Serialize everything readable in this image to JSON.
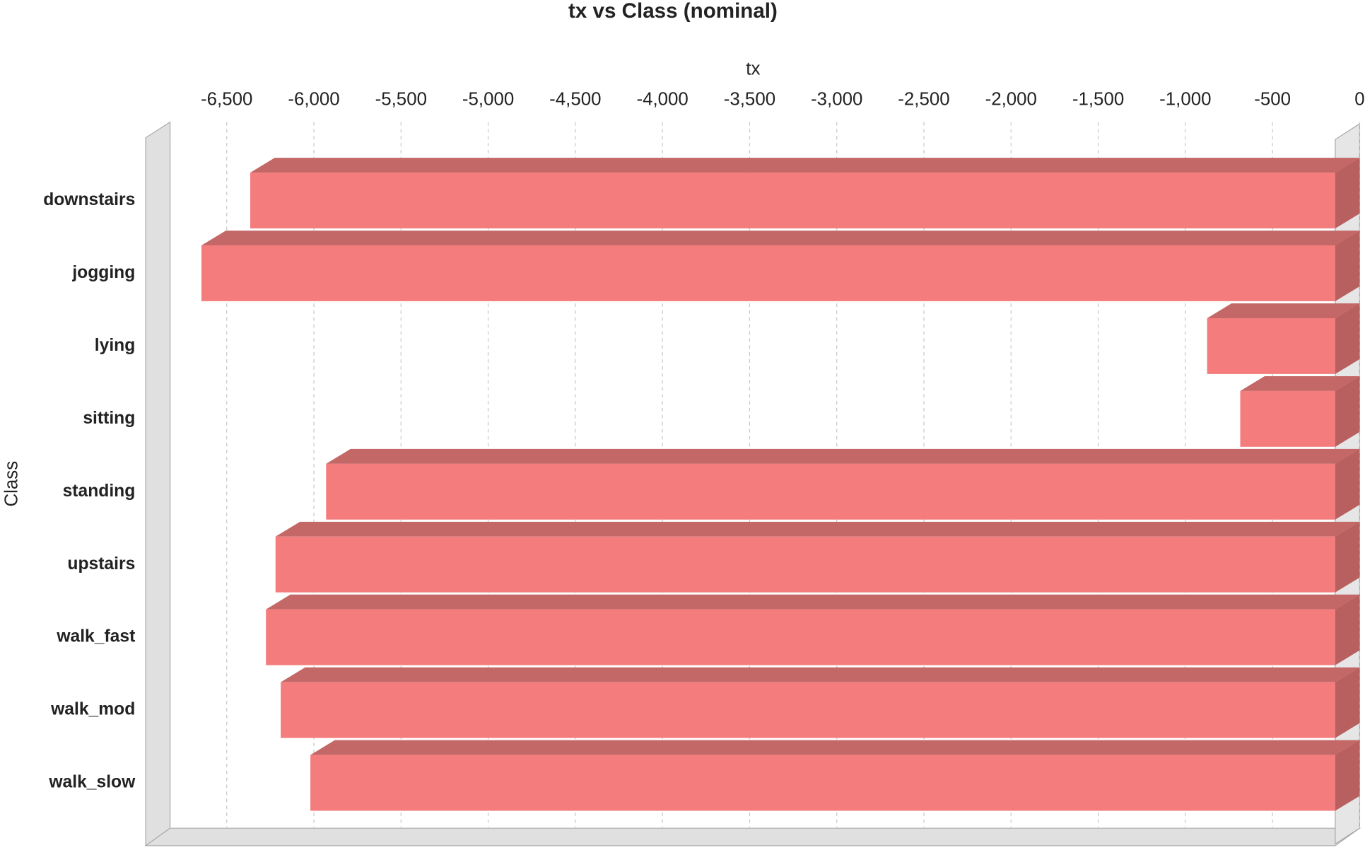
{
  "chart_data": {
    "type": "bar3d_horizontal",
    "title": "tx vs Class (nominal)",
    "x_label": "tx",
    "y_label": "Class",
    "categories": [
      "downstairs",
      "jogging",
      "lying",
      "sitting",
      "standing",
      "upstairs",
      "walk_fast",
      "walk_mod",
      "walk_slow"
    ],
    "values": [
      -6225,
      -6505,
      -735,
      -545,
      -5790,
      -6080,
      -6135,
      -6050,
      -5880
    ],
    "color": "#f47c7c",
    "xlim": [
      -6825,
      0
    ],
    "xticks": [
      {
        "value": -6500,
        "label": "-6,500"
      },
      {
        "value": -6000,
        "label": "-6,000"
      },
      {
        "value": -5500,
        "label": "-5,500"
      },
      {
        "value": -5000,
        "label": "-5,000"
      },
      {
        "value": -4500,
        "label": "-4,500"
      },
      {
        "value": -4000,
        "label": "-4,000"
      },
      {
        "value": -3500,
        "label": "-3,500"
      },
      {
        "value": -3000,
        "label": "-3,000"
      },
      {
        "value": -2500,
        "label": "-2,500"
      },
      {
        "value": -2000,
        "label": "-2,000"
      },
      {
        "value": -1500,
        "label": "-1,500"
      },
      {
        "value": -1000,
        "label": "-1,000"
      },
      {
        "value": -500,
        "label": "-500"
      },
      0
    ],
    "grid": true
  }
}
